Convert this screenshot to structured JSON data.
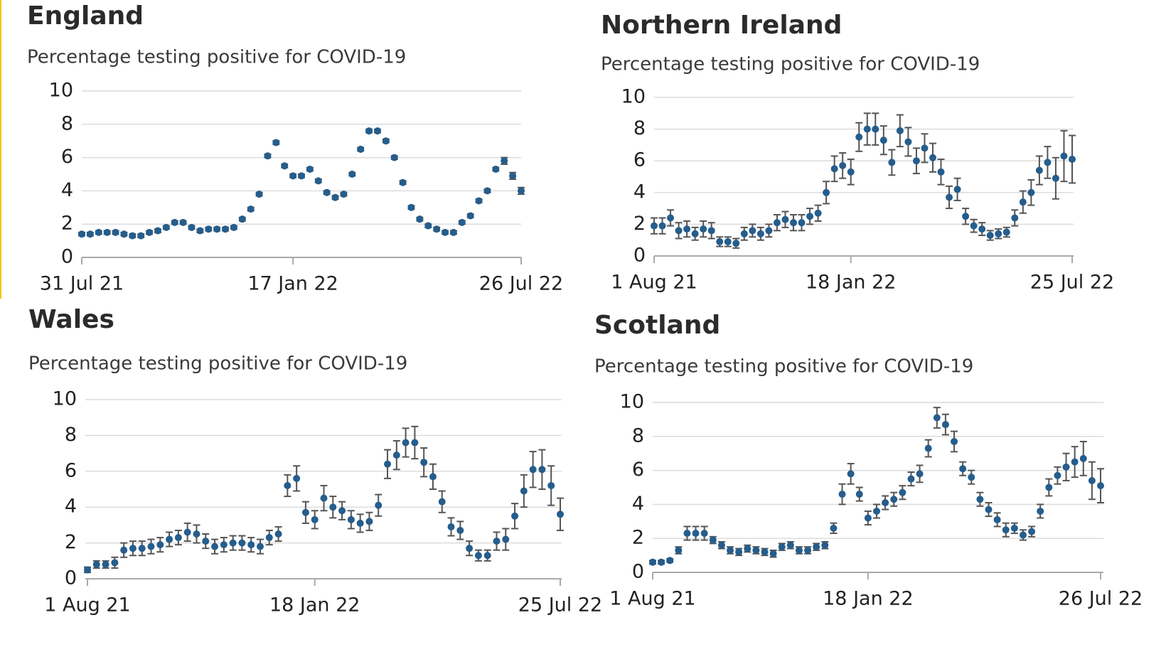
{
  "chart_data": [
    {
      "type": "scatter",
      "title": "England",
      "subtitle": "Percentage testing positive for COVID-19",
      "categories": [
        "31 Jul 21",
        null,
        null,
        null,
        null,
        null,
        null,
        null,
        null,
        null,
        null,
        null,
        null,
        null,
        null,
        null,
        null,
        null,
        null,
        null,
        null,
        null,
        null,
        null,
        null,
        "17 Jan 22",
        null,
        null,
        null,
        null,
        null,
        null,
        null,
        null,
        null,
        null,
        null,
        null,
        null,
        null,
        null,
        null,
        null,
        null,
        null,
        null,
        null,
        null,
        null,
        null,
        null,
        null,
        "26 Jul 22"
      ],
      "series": [
        {
          "color": "#255d8c",
          "values": [
            1.4,
            1.4,
            1.5,
            1.5,
            1.5,
            1.4,
            1.3,
            1.3,
            1.5,
            1.6,
            1.8,
            2.1,
            2.1,
            1.8,
            1.6,
            1.7,
            1.7,
            1.7,
            1.8,
            2.3,
            2.9,
            3.8,
            6.1,
            6.9,
            5.5,
            4.9,
            4.9,
            5.3,
            4.6,
            3.9,
            3.6,
            3.8,
            5.0,
            6.5,
            7.6,
            7.6,
            7.0,
            6.0,
            4.5,
            3.0,
            2.3,
            1.9,
            1.7,
            1.5,
            1.5,
            2.1,
            2.5,
            3.4,
            4.0,
            5.3,
            5.8,
            4.9,
            4.0
          ],
          "errors": [
            0.1,
            0.1,
            0.1,
            0.1,
            0.1,
            0.1,
            0.1,
            0.1,
            0.1,
            0.1,
            0.1,
            0.1,
            0.1,
            0.1,
            0.1,
            0.1,
            0.1,
            0.1,
            0.1,
            0.1,
            0.1,
            0.1,
            0.1,
            0.1,
            0.1,
            0.1,
            0.1,
            0.1,
            0.1,
            0.1,
            0.1,
            0.1,
            0.1,
            0.1,
            0.1,
            0.1,
            0.1,
            0.1,
            0.1,
            0.1,
            0.1,
            0.1,
            0.1,
            0.1,
            0.1,
            0.1,
            0.1,
            0.1,
            0.1,
            0.1,
            0.2,
            0.2,
            0.2
          ]
        }
      ],
      "ylim": [
        0,
        10
      ],
      "yticks": [
        0,
        2,
        4,
        6,
        8,
        10
      ],
      "grid": true
    },
    {
      "type": "scatter",
      "title": "Northern Ireland",
      "subtitle": "Percentage testing positive for COVID-19",
      "categories": [
        "1 Aug 21",
        null,
        null,
        null,
        null,
        null,
        null,
        null,
        null,
        null,
        null,
        null,
        null,
        null,
        null,
        null,
        null,
        null,
        null,
        null,
        null,
        null,
        null,
        null,
        "18 Jan 22",
        null,
        null,
        null,
        null,
        null,
        null,
        null,
        null,
        null,
        null,
        null,
        null,
        null,
        null,
        null,
        null,
        null,
        null,
        null,
        null,
        null,
        null,
        null,
        null,
        null,
        null,
        "25 Jul 22"
      ],
      "series": [
        {
          "color": "#255d8c",
          "values": [
            1.9,
            1.9,
            2.4,
            1.6,
            1.7,
            1.4,
            1.7,
            1.6,
            0.9,
            0.9,
            0.8,
            1.4,
            1.6,
            1.4,
            1.6,
            2.1,
            2.3,
            2.1,
            2.1,
            2.5,
            2.7,
            4.0,
            5.5,
            5.7,
            5.3,
            7.5,
            8.0,
            8.0,
            7.3,
            5.9,
            7.9,
            7.2,
            6.0,
            6.8,
            6.2,
            5.3,
            3.7,
            4.2,
            2.5,
            1.9,
            1.7,
            1.3,
            1.4,
            1.5,
            2.4,
            3.4,
            4.0,
            5.4,
            5.9,
            4.9,
            6.3,
            6.1
          ],
          "errors": [
            0.5,
            0.5,
            0.5,
            0.5,
            0.5,
            0.4,
            0.5,
            0.5,
            0.3,
            0.3,
            0.3,
            0.4,
            0.4,
            0.4,
            0.4,
            0.5,
            0.5,
            0.5,
            0.5,
            0.5,
            0.5,
            0.7,
            0.8,
            0.8,
            0.8,
            0.9,
            1.0,
            1.0,
            0.9,
            0.8,
            1.0,
            0.9,
            0.8,
            0.9,
            0.9,
            0.8,
            0.7,
            0.7,
            0.5,
            0.4,
            0.4,
            0.3,
            0.3,
            0.3,
            0.5,
            0.7,
            0.8,
            0.9,
            1.0,
            1.3,
            1.6,
            1.5
          ]
        }
      ],
      "ylim": [
        0,
        10
      ],
      "yticks": [
        0,
        2,
        4,
        6,
        8,
        10
      ],
      "grid": true
    },
    {
      "type": "scatter",
      "title": "Wales",
      "subtitle": "Percentage testing positive for COVID-19",
      "categories": [
        "1 Aug 21",
        null,
        null,
        null,
        null,
        null,
        null,
        null,
        null,
        null,
        null,
        null,
        null,
        null,
        null,
        null,
        null,
        null,
        null,
        null,
        null,
        null,
        null,
        null,
        null,
        "18 Jan 22",
        null,
        null,
        null,
        null,
        null,
        null,
        null,
        null,
        null,
        null,
        null,
        null,
        null,
        null,
        null,
        null,
        null,
        null,
        null,
        null,
        null,
        null,
        null,
        null,
        null,
        null,
        "25 Jul 22"
      ],
      "series": [
        {
          "color": "#255d8c",
          "values": [
            0.5,
            0.8,
            0.8,
            0.9,
            1.6,
            1.7,
            1.7,
            1.8,
            1.9,
            2.2,
            2.3,
            2.6,
            2.5,
            2.1,
            1.8,
            1.9,
            2.0,
            2.0,
            1.9,
            1.8,
            2.3,
            2.5,
            5.2,
            5.6,
            3.7,
            3.3,
            4.5,
            4.0,
            3.8,
            3.3,
            3.1,
            3.2,
            4.1,
            6.4,
            6.9,
            7.6,
            7.6,
            6.5,
            5.7,
            4.3,
            2.9,
            2.7,
            1.7,
            1.3,
            1.3,
            2.1,
            2.2,
            3.5,
            4.9,
            6.1,
            6.1,
            5.2,
            3.6
          ],
          "errors": [
            0.15,
            0.2,
            0.2,
            0.3,
            0.4,
            0.4,
            0.4,
            0.4,
            0.4,
            0.4,
            0.4,
            0.5,
            0.5,
            0.4,
            0.4,
            0.4,
            0.4,
            0.4,
            0.4,
            0.4,
            0.4,
            0.4,
            0.6,
            0.7,
            0.6,
            0.5,
            0.7,
            0.6,
            0.5,
            0.5,
            0.5,
            0.5,
            0.6,
            0.8,
            0.8,
            0.8,
            0.9,
            0.8,
            0.7,
            0.6,
            0.5,
            0.5,
            0.4,
            0.3,
            0.3,
            0.5,
            0.6,
            0.7,
            0.9,
            1.0,
            1.1,
            1.1,
            0.9
          ]
        }
      ],
      "ylim": [
        0,
        10
      ],
      "yticks": [
        0,
        2,
        4,
        6,
        8,
        10
      ],
      "grid": true
    },
    {
      "type": "scatter",
      "title": "Scotland",
      "subtitle": "Percentage testing positive for COVID-19",
      "categories": [
        "1 Aug 21",
        null,
        null,
        null,
        null,
        null,
        null,
        null,
        null,
        null,
        null,
        null,
        null,
        null,
        null,
        null,
        null,
        null,
        null,
        null,
        null,
        null,
        null,
        null,
        null,
        "18 Jan 22",
        null,
        null,
        null,
        null,
        null,
        null,
        null,
        null,
        null,
        null,
        null,
        null,
        null,
        null,
        null,
        null,
        null,
        null,
        null,
        null,
        null,
        null,
        null,
        null,
        null,
        null,
        "26 Jul 22"
      ],
      "series": [
        {
          "color": "#255d8c",
          "values": [
            0.6,
            0.6,
            0.7,
            1.3,
            2.3,
            2.3,
            2.3,
            1.9,
            1.6,
            1.3,
            1.2,
            1.4,
            1.3,
            1.2,
            1.1,
            1.5,
            1.6,
            1.3,
            1.3,
            1.5,
            1.6,
            2.6,
            4.6,
            5.8,
            4.6,
            3.2,
            3.6,
            4.1,
            4.3,
            4.7,
            5.5,
            5.8,
            7.3,
            9.1,
            8.7,
            7.7,
            6.1,
            5.6,
            4.3,
            3.7,
            3.1,
            2.5,
            2.6,
            2.2,
            2.4,
            3.6,
            5.0,
            5.7,
            6.2,
            6.5,
            6.7,
            5.4,
            5.1
          ],
          "errors": [
            0.1,
            0.1,
            0.1,
            0.2,
            0.4,
            0.4,
            0.4,
            0.2,
            0.2,
            0.2,
            0.2,
            0.2,
            0.2,
            0.2,
            0.2,
            0.2,
            0.2,
            0.2,
            0.2,
            0.2,
            0.2,
            0.3,
            0.6,
            0.6,
            0.4,
            0.4,
            0.4,
            0.4,
            0.4,
            0.4,
            0.4,
            0.5,
            0.5,
            0.6,
            0.6,
            0.6,
            0.4,
            0.4,
            0.4,
            0.4,
            0.4,
            0.4,
            0.3,
            0.3,
            0.3,
            0.4,
            0.5,
            0.5,
            0.8,
            0.9,
            1.0,
            1.1,
            1.0
          ]
        }
      ],
      "ylim": [
        0,
        10
      ],
      "yticks": [
        0,
        2,
        4,
        6,
        8,
        10
      ],
      "grid": true
    }
  ]
}
